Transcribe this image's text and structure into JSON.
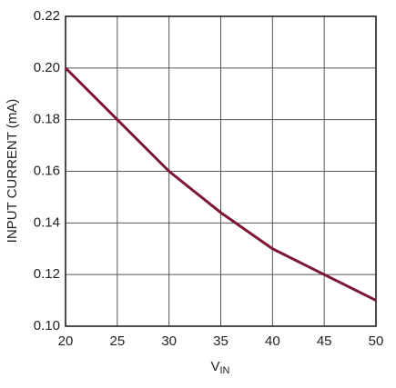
{
  "chart_data": {
    "type": "line",
    "xlabel": "V",
    "xlabel_subscript": "IN",
    "ylabel": "INPUT CURRENT (mA)",
    "x": [
      20,
      25,
      30,
      35,
      40,
      45,
      50
    ],
    "series": [
      {
        "color": "#7d1734",
        "values": [
          0.2,
          0.18,
          0.16,
          0.144,
          0.13,
          0.12,
          0.11
        ]
      }
    ],
    "xlim": [
      20,
      50
    ],
    "xticks": [
      20,
      25,
      30,
      35,
      40,
      45,
      50
    ],
    "ylim": [
      0.1,
      0.22
    ],
    "yticks": [
      {
        "value": 0.1,
        "label": "0.10"
      },
      0.12,
      0.14,
      0.16,
      0.18,
      {
        "value": 0.2,
        "label": "0.20"
      },
      0.22
    ],
    "grid": true
  }
}
